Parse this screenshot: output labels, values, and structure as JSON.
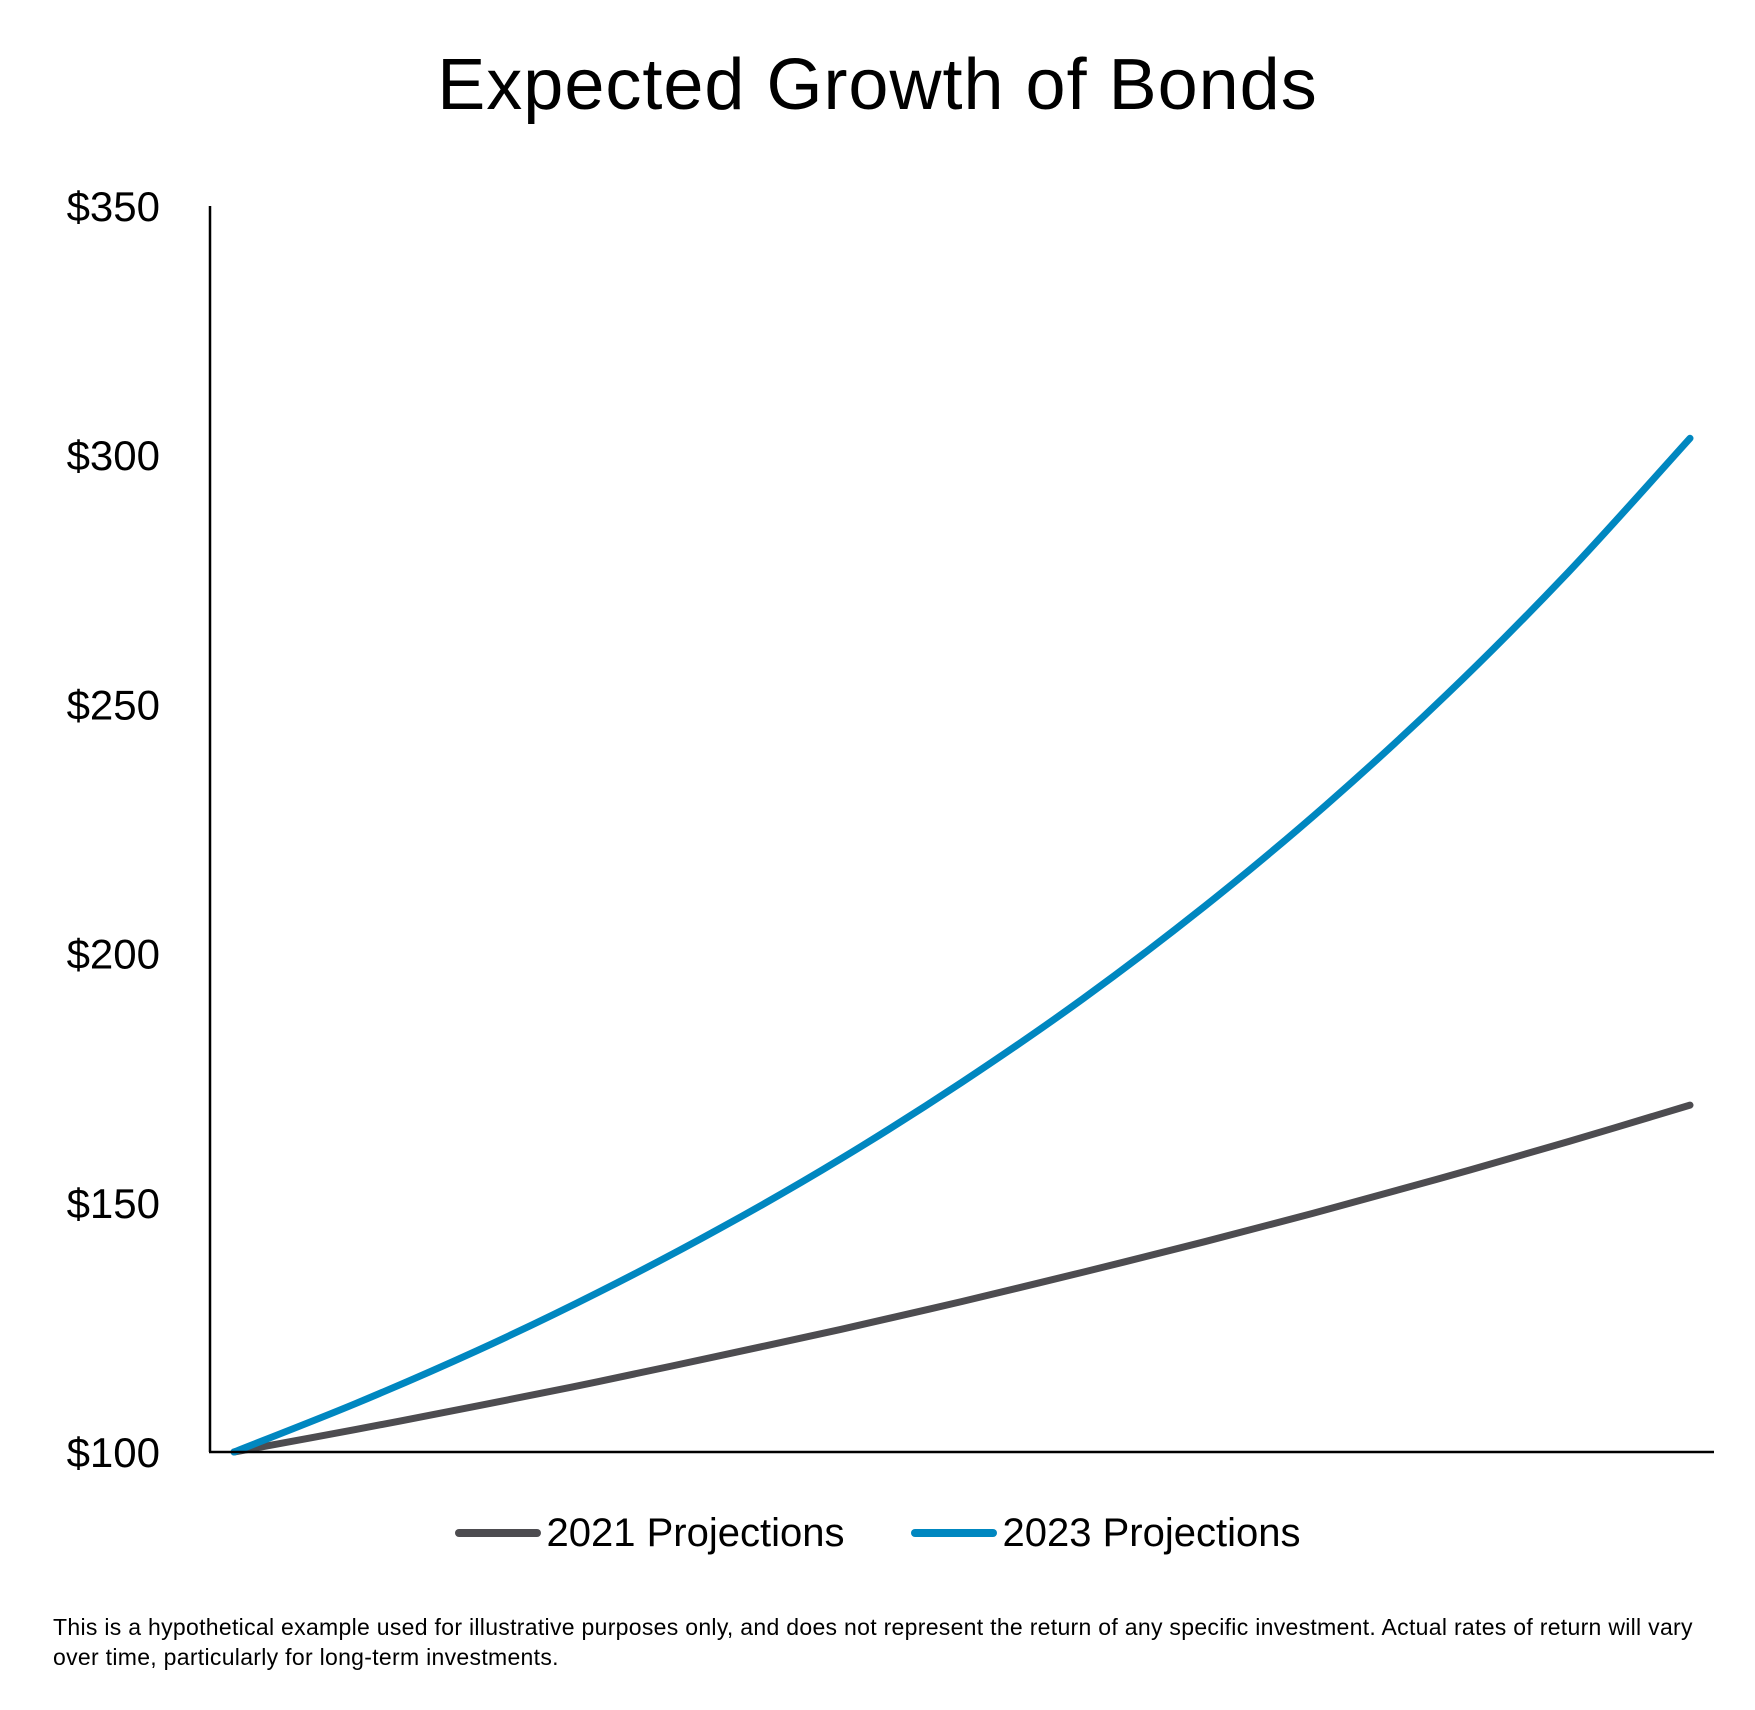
{
  "chart_data": {
    "type": "line",
    "title": "Expected Growth of Bonds",
    "xlabel": "",
    "ylabel": "",
    "ylim": [
      100,
      350
    ],
    "y_ticks": [
      "$100",
      "$150",
      "$200",
      "$250",
      "$300",
      "$350"
    ],
    "y_tick_values": [
      100,
      150,
      200,
      250,
      300,
      350
    ],
    "x": [
      0,
      1,
      2,
      3,
      4,
      5,
      6,
      7,
      8,
      9,
      10,
      11,
      12
    ],
    "grid": false,
    "legend_position": "bottom",
    "series": [
      {
        "name": "2021 Projections",
        "color": "#4d4c50",
        "values": [
          100,
          104.5,
          109.2,
          114.1,
          119.3,
          124.6,
          130.2,
          136.1,
          142.2,
          148.6,
          155.3,
          162.3,
          169.6
        ]
      },
      {
        "name": "2023 Projections",
        "color": "#0087c0",
        "values": [
          100,
          109.7,
          120.3,
          132.0,
          144.8,
          158.8,
          174.2,
          191.0,
          209.5,
          229.8,
          252.1,
          276.6,
          303.4
        ]
      }
    ],
    "footnote": "This is a hypothetical example used for illustrative purposes only, and does not represent the return of any specific investment. Actual rates of return will vary over time, particularly for long-term investments."
  }
}
